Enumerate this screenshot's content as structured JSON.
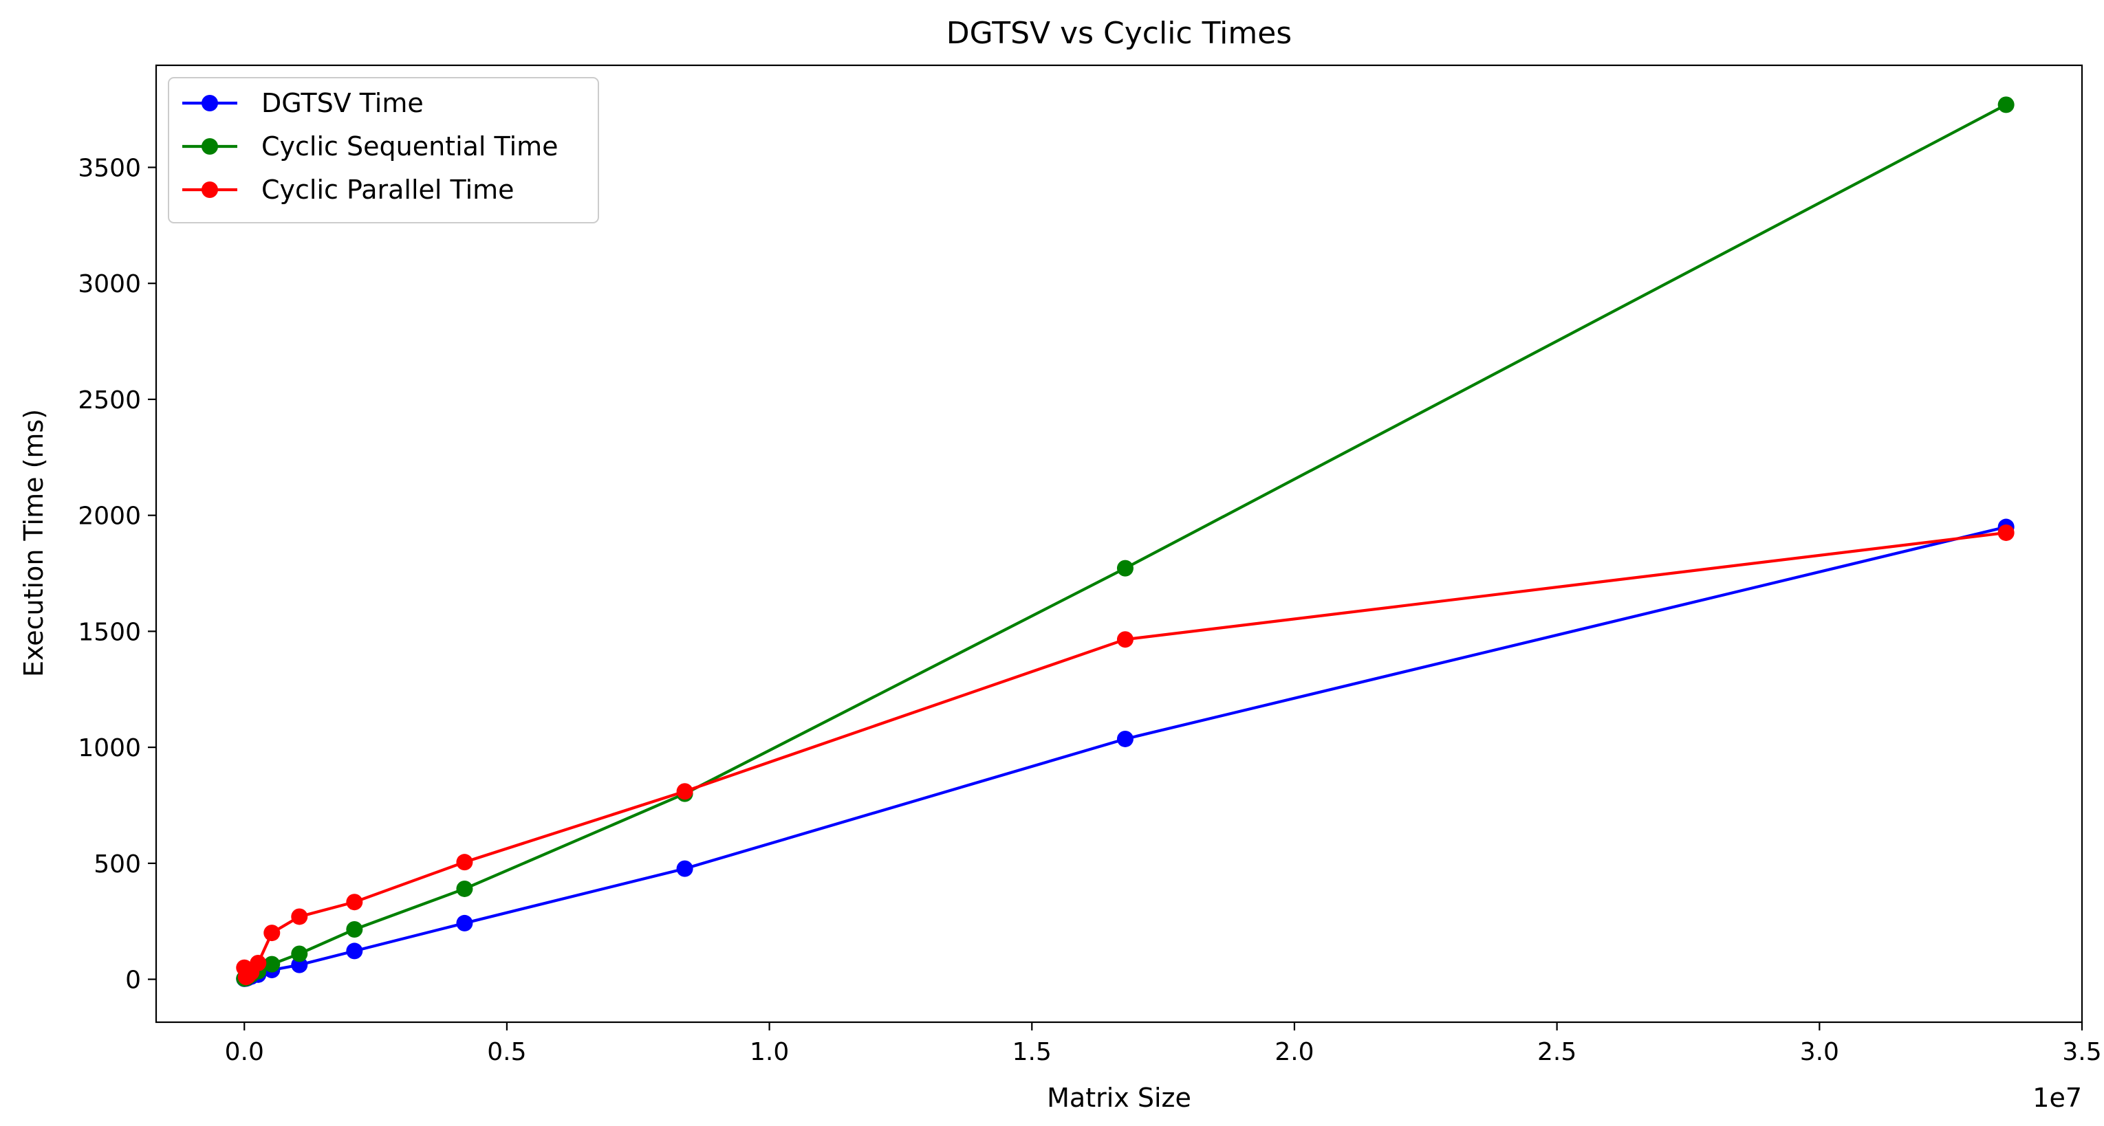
{
  "chart_data": {
    "type": "line",
    "title": "DGTSV vs Cyclic Times",
    "xlabel": "Matrix Size",
    "ylabel": "Execution Time (ms)",
    "x_offset_label": "1e7",
    "xlim": [
      -0.168,
      3.5
    ],
    "ylim": [
      -185,
      3940
    ],
    "x_unit_note": "x values are in units of 1e7",
    "x_ticks": [
      0.0,
      0.5,
      1.0,
      1.5,
      2.0,
      2.5,
      3.0,
      3.5
    ],
    "x_tick_labels": [
      "0.0",
      "0.5",
      "1.0",
      "1.5",
      "2.0",
      "2.5",
      "3.0",
      "3.5"
    ],
    "y_ticks": [
      0,
      500,
      1000,
      1500,
      2000,
      2500,
      3000,
      3500
    ],
    "y_tick_labels": [
      "0",
      "500",
      "1000",
      "1500",
      "2000",
      "2500",
      "3000",
      "3500"
    ],
    "legend_position": "top-left",
    "grid": false,
    "series": [
      {
        "name": "DGTSV Time",
        "color": "#0000ff",
        "x": [
          0.0,
          0.0032768,
          0.0065536,
          0.0131072,
          0.0262144,
          0.0524288,
          0.1048576,
          0.2097152,
          0.4194304,
          0.8388608,
          1.6777216,
          3.3554432
        ],
        "y": [
          2,
          3,
          6,
          12,
          20,
          40,
          62,
          122,
          242,
          477,
          1036,
          1950
        ]
      },
      {
        "name": "Cyclic Sequential Time",
        "color": "#008000",
        "x": [
          0.0,
          0.0032768,
          0.0065536,
          0.0131072,
          0.0262144,
          0.0524288,
          0.1048576,
          0.2097152,
          0.4194304,
          0.8388608,
          1.6777216,
          3.3554432
        ],
        "y": [
          3,
          5,
          10,
          20,
          35,
          65,
          110,
          215,
          390,
          800,
          1772,
          3770
        ]
      },
      {
        "name": "Cyclic Parallel Time",
        "color": "#ff0000",
        "x": [
          0.0,
          0.0032768,
          0.0065536,
          0.0131072,
          0.0262144,
          0.0524288,
          0.1048576,
          0.2097152,
          0.4194304,
          0.8388608,
          1.6777216,
          3.3554432
        ],
        "y": [
          50,
          10,
          15,
          30,
          70,
          200,
          270,
          333,
          505,
          810,
          1465,
          1925
        ]
      }
    ]
  }
}
